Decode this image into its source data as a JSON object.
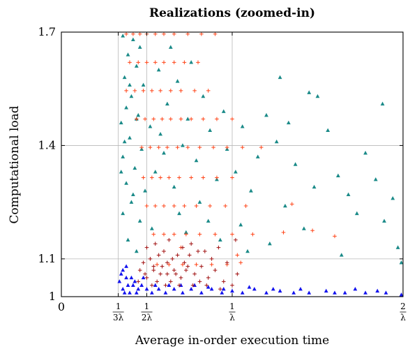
{
  "chart_data": {
    "type": "scatter",
    "title": "Realizations (zoomed-in)",
    "xlabel": "Average in-order execution time",
    "ylabel": "Computational load",
    "xlim": [
      0,
      2
    ],
    "ylim": [
      1.0,
      1.7
    ],
    "x_unit": "1/λ",
    "x_ticks": [
      {
        "value": 0,
        "label": "0"
      },
      {
        "value": 0.3333,
        "num": "1",
        "den": "3λ"
      },
      {
        "value": 0.5,
        "num": "1",
        "den": "2λ"
      },
      {
        "value": 1,
        "num": "1",
        "den": "λ"
      },
      {
        "value": 2,
        "num": "2",
        "den": "λ"
      }
    ],
    "y_ticks": [
      {
        "value": 1.0,
        "label": "1"
      },
      {
        "value": 1.1,
        "label": "1.1"
      },
      {
        "value": 1.4,
        "label": "1.4"
      },
      {
        "value": 1.7,
        "label": "1.7"
      }
    ],
    "grid_x": [
      0.3333,
      0.5,
      1
    ],
    "grid_y": [
      1.1,
      1.4
    ],
    "legend": "none",
    "series": [
      {
        "marker": "triangle",
        "color": "#1a8a88",
        "points": [
          [
            0.36,
            1.69
          ],
          [
            0.42,
            1.68
          ],
          [
            0.46,
            1.66
          ],
          [
            0.39,
            1.64
          ],
          [
            0.44,
            1.61
          ],
          [
            0.37,
            1.58
          ],
          [
            0.48,
            1.56
          ],
          [
            0.41,
            1.53
          ],
          [
            0.38,
            1.5
          ],
          [
            0.45,
            1.48
          ],
          [
            0.35,
            1.46
          ],
          [
            0.52,
            1.45
          ],
          [
            0.4,
            1.42
          ],
          [
            0.47,
            1.39
          ],
          [
            0.36,
            1.37
          ],
          [
            0.43,
            1.34
          ],
          [
            0.55,
            1.33
          ],
          [
            0.38,
            1.3
          ],
          [
            0.49,
            1.28
          ],
          [
            0.41,
            1.25
          ],
          [
            0.36,
            1.22
          ],
          [
            0.46,
            1.2
          ],
          [
            0.53,
            1.18
          ],
          [
            0.39,
            1.15
          ],
          [
            0.44,
            1.12
          ],
          [
            0.58,
            1.43
          ],
          [
            0.62,
            1.51
          ],
          [
            0.6,
            1.38
          ],
          [
            0.66,
            1.29
          ],
          [
            0.71,
            1.4
          ],
          [
            0.57,
            1.6
          ],
          [
            0.64,
            1.66
          ],
          [
            0.68,
            1.57
          ],
          [
            0.74,
            1.47
          ],
          [
            0.79,
            1.36
          ],
          [
            0.83,
            1.53
          ],
          [
            0.76,
            1.62
          ],
          [
            0.87,
            1.44
          ],
          [
            0.91,
            1.31
          ],
          [
            0.95,
            1.49
          ],
          [
            0.69,
            1.22
          ],
          [
            0.73,
            1.17
          ],
          [
            0.81,
            1.25
          ],
          [
            0.86,
            1.2
          ],
          [
            0.97,
            1.39
          ],
          [
            1.02,
            1.33
          ],
          [
            1.06,
            1.45
          ],
          [
            1.11,
            1.28
          ],
          [
            1.05,
            1.19
          ],
          [
            1.15,
            1.37
          ],
          [
            1.2,
            1.48
          ],
          [
            1.26,
            1.41
          ],
          [
            1.31,
            1.24
          ],
          [
            1.37,
            1.35
          ],
          [
            1.42,
            1.18
          ],
          [
            1.48,
            1.29
          ],
          [
            1.5,
            1.53
          ],
          [
            1.56,
            1.44
          ],
          [
            1.62,
            1.32
          ],
          [
            1.68,
            1.27
          ],
          [
            1.73,
            1.22
          ],
          [
            1.78,
            1.38
          ],
          [
            1.84,
            1.31
          ],
          [
            1.89,
            1.2
          ],
          [
            1.94,
            1.26
          ],
          [
            1.88,
            1.51
          ],
          [
            1.97,
            1.13
          ],
          [
            1.99,
            1.09
          ],
          [
            1.28,
            1.58
          ],
          [
            1.64,
            1.11
          ],
          [
            1.45,
            1.54
          ],
          [
            1.33,
            1.46
          ],
          [
            1.22,
            1.14
          ],
          [
            1.09,
            1.12
          ],
          [
            0.93,
            1.15
          ],
          [
            0.37,
            1.41
          ],
          [
            0.42,
            1.27
          ],
          [
            0.35,
            1.33
          ],
          [
            0.4,
            1.56
          ],
          [
            0.44,
            1.47
          ]
        ]
      },
      {
        "marker": "plus",
        "color": "#ff4418",
        "points": [
          [
            0.38,
            1.695
          ],
          [
            0.42,
            1.695
          ],
          [
            0.46,
            1.695
          ],
          [
            0.5,
            1.695
          ],
          [
            0.55,
            1.695
          ],
          [
            0.6,
            1.695
          ],
          [
            0.66,
            1.695
          ],
          [
            0.74,
            1.695
          ],
          [
            0.82,
            1.695
          ],
          [
            0.9,
            1.695
          ],
          [
            0.4,
            1.62
          ],
          [
            0.45,
            1.62
          ],
          [
            0.5,
            1.62
          ],
          [
            0.55,
            1.62
          ],
          [
            0.6,
            1.62
          ],
          [
            0.66,
            1.62
          ],
          [
            0.72,
            1.62
          ],
          [
            0.8,
            1.62
          ],
          [
            0.38,
            1.545
          ],
          [
            0.43,
            1.545
          ],
          [
            0.48,
            1.545
          ],
          [
            0.53,
            1.545
          ],
          [
            0.58,
            1.545
          ],
          [
            0.64,
            1.545
          ],
          [
            0.7,
            1.545
          ],
          [
            0.78,
            1.545
          ],
          [
            0.86,
            1.545
          ],
          [
            0.44,
            1.47
          ],
          [
            0.49,
            1.47
          ],
          [
            0.54,
            1.47
          ],
          [
            0.59,
            1.47
          ],
          [
            0.64,
            1.47
          ],
          [
            0.7,
            1.47
          ],
          [
            0.76,
            1.47
          ],
          [
            0.83,
            1.47
          ],
          [
            0.91,
            1.47
          ],
          [
            1.0,
            1.47
          ],
          [
            0.47,
            1.395
          ],
          [
            0.52,
            1.395
          ],
          [
            0.57,
            1.395
          ],
          [
            0.62,
            1.395
          ],
          [
            0.68,
            1.395
          ],
          [
            0.74,
            1.395
          ],
          [
            0.81,
            1.395
          ],
          [
            0.89,
            1.395
          ],
          [
            0.97,
            1.395
          ],
          [
            1.06,
            1.395
          ],
          [
            1.17,
            1.395
          ],
          [
            0.48,
            1.315
          ],
          [
            0.53,
            1.315
          ],
          [
            0.58,
            1.315
          ],
          [
            0.63,
            1.315
          ],
          [
            0.69,
            1.315
          ],
          [
            0.76,
            1.315
          ],
          [
            0.83,
            1.315
          ],
          [
            0.91,
            1.315
          ],
          [
            1.0,
            1.315
          ],
          [
            0.5,
            1.24
          ],
          [
            0.55,
            1.24
          ],
          [
            0.6,
            1.24
          ],
          [
            0.66,
            1.24
          ],
          [
            0.72,
            1.24
          ],
          [
            0.79,
            1.24
          ],
          [
            0.87,
            1.24
          ],
          [
            0.96,
            1.24
          ],
          [
            1.08,
            1.24
          ],
          [
            1.35,
            1.245
          ],
          [
            0.54,
            1.165
          ],
          [
            0.6,
            1.165
          ],
          [
            0.66,
            1.165
          ],
          [
            0.73,
            1.165
          ],
          [
            0.81,
            1.165
          ],
          [
            0.9,
            1.165
          ],
          [
            1.0,
            1.165
          ],
          [
            1.12,
            1.165
          ],
          [
            1.3,
            1.17
          ],
          [
            1.47,
            1.175
          ],
          [
            1.6,
            1.16
          ],
          [
            0.56,
            1.085
          ],
          [
            0.63,
            1.085
          ],
          [
            0.71,
            1.085
          ],
          [
            0.79,
            1.085
          ],
          [
            0.88,
            1.085
          ],
          [
            0.97,
            1.085
          ],
          [
            1.05,
            1.09
          ],
          [
            0.6,
            1.12
          ],
          [
            0.7,
            1.13
          ],
          [
            1.03,
            1.11
          ]
        ]
      },
      {
        "marker": "triangle",
        "color": "#1414ee",
        "points": [
          [
            0.34,
            1.04
          ],
          [
            0.36,
            1.02
          ],
          [
            0.38,
            1.05
          ],
          [
            0.4,
            1.01
          ],
          [
            0.42,
            1.03
          ],
          [
            0.45,
            1.02
          ],
          [
            0.35,
            1.06
          ],
          [
            0.37,
            1.01
          ],
          [
            0.39,
            1.03
          ],
          [
            0.41,
            1.05
          ],
          [
            0.44,
            1.01
          ],
          [
            0.47,
            1.03
          ],
          [
            0.5,
            1.02
          ],
          [
            0.53,
            1.01
          ],
          [
            0.57,
            1.02
          ],
          [
            0.61,
            1.01
          ],
          [
            0.66,
            1.02
          ],
          [
            0.71,
            1.01
          ],
          [
            0.76,
            1.02
          ],
          [
            0.82,
            1.01
          ],
          [
            0.88,
            1.02
          ],
          [
            0.94,
            1.01
          ],
          [
            1.0,
            1.015
          ],
          [
            1.06,
            1.01
          ],
          [
            1.13,
            1.02
          ],
          [
            1.2,
            1.01
          ],
          [
            1.28,
            1.015
          ],
          [
            1.36,
            1.01
          ],
          [
            1.45,
            1.01
          ],
          [
            1.55,
            1.015
          ],
          [
            1.66,
            1.01
          ],
          [
            1.78,
            1.01
          ],
          [
            1.9,
            1.01
          ],
          [
            1.99,
            1.005
          ],
          [
            0.36,
            1.07
          ],
          [
            0.38,
            1.08
          ],
          [
            0.43,
            1.04
          ],
          [
            0.48,
            1.05
          ],
          [
            0.55,
            1.03
          ],
          [
            0.63,
            1.03
          ],
          [
            0.7,
            1.03
          ],
          [
            0.78,
            1.03
          ],
          [
            0.86,
            1.025
          ],
          [
            0.95,
            1.02
          ],
          [
            1.1,
            1.025
          ],
          [
            1.24,
            1.02
          ],
          [
            1.4,
            1.02
          ],
          [
            1.6,
            1.01
          ],
          [
            1.72,
            1.02
          ],
          [
            1.85,
            1.015
          ]
        ]
      },
      {
        "marker": "plus",
        "color": "#a01010",
        "points": [
          [
            0.46,
            1.07
          ],
          [
            0.5,
            1.05
          ],
          [
            0.54,
            1.08
          ],
          [
            0.58,
            1.06
          ],
          [
            0.62,
            1.09
          ],
          [
            0.66,
            1.07
          ],
          [
            0.7,
            1.05
          ],
          [
            0.74,
            1.08
          ],
          [
            0.48,
            1.09
          ],
          [
            0.52,
            1.1
          ],
          [
            0.56,
            1.04
          ],
          [
            0.6,
            1.12
          ],
          [
            0.64,
            1.04
          ],
          [
            0.68,
            1.11
          ],
          [
            0.72,
            1.09
          ],
          [
            0.78,
            1.06
          ],
          [
            0.82,
            1.08
          ],
          [
            0.86,
            1.05
          ],
          [
            0.9,
            1.07
          ],
          [
            0.95,
            1.04
          ],
          [
            0.5,
            1.13
          ],
          [
            0.55,
            1.14
          ],
          [
            0.63,
            1.15
          ],
          [
            0.71,
            1.13
          ],
          [
            0.8,
            1.12
          ],
          [
            0.88,
            1.1
          ],
          [
            0.97,
            1.09
          ],
          [
            1.03,
            1.06
          ],
          [
            0.45,
            1.04
          ],
          [
            0.53,
            1.03
          ],
          [
            0.61,
            1.03
          ],
          [
            0.69,
            1.03
          ],
          [
            0.77,
            1.03
          ],
          [
            0.85,
            1.03
          ],
          [
            0.93,
            1.02
          ],
          [
            1.0,
            1.03
          ],
          [
            0.57,
            1.11
          ],
          [
            0.65,
            1.1
          ],
          [
            0.75,
            1.11
          ],
          [
            0.84,
            1.12
          ],
          [
            0.49,
            1.06
          ],
          [
            0.59,
            1.08
          ],
          [
            0.67,
            1.06
          ],
          [
            0.73,
            1.07
          ],
          [
            0.81,
            1.04
          ],
          [
            0.92,
            1.13
          ],
          [
            1.02,
            1.15
          ],
          [
            0.76,
            1.14
          ],
          [
            0.62,
            1.06
          ],
          [
            0.54,
            1.07
          ]
        ]
      }
    ]
  }
}
